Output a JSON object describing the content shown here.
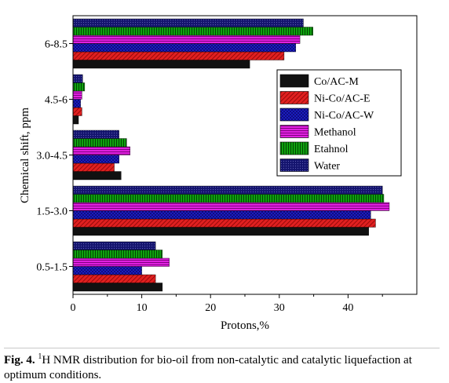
{
  "chart_data": {
    "type": "bar",
    "orientation": "horizontal",
    "title": "",
    "xlabel": "Protons,%",
    "ylabel": "Chemical shift, ppm",
    "xlim": [
      0,
      50
    ],
    "xticks": [
      "0",
      "10",
      "20",
      "30",
      "40"
    ],
    "categories": [
      "0.5-1.5",
      "1.5-3.0",
      "3.0-4.5",
      "4.5-6",
      "6-8.5"
    ],
    "legend_position": "right",
    "grid": false,
    "series": [
      {
        "name": "Co/AC-M",
        "color": "#111111",
        "pattern": "solid",
        "values": [
          13,
          43,
          7,
          0.8,
          25.7
        ]
      },
      {
        "name": "Ni-Co/AC-E",
        "color": "#e02020",
        "pattern": "diag",
        "values": [
          12,
          44,
          6,
          1.3,
          30.7
        ]
      },
      {
        "name": "Ni-Co/AC-W",
        "color": "#2020d0",
        "pattern": "cross",
        "values": [
          10,
          43.3,
          6.7,
          1.1,
          32.4
        ]
      },
      {
        "name": "Methanol",
        "color": "#e020e0",
        "pattern": "hlines",
        "values": [
          14,
          46,
          8.3,
          1.3,
          33
        ]
      },
      {
        "name": "Etahnol",
        "color": "#109010",
        "pattern": "vlines",
        "values": [
          13,
          45.2,
          7.8,
          1.7,
          34.9
        ]
      },
      {
        "name": "Water",
        "color": "#14146e",
        "pattern": "dots",
        "values": [
          12,
          45,
          6.7,
          1.4,
          33.5
        ]
      }
    ]
  },
  "caption": {
    "label": "Fig. 4.",
    "superscript": "1",
    "text": "H NMR distribution for bio-oil from non-catalytic and catalytic liquefaction at optimum conditions."
  }
}
